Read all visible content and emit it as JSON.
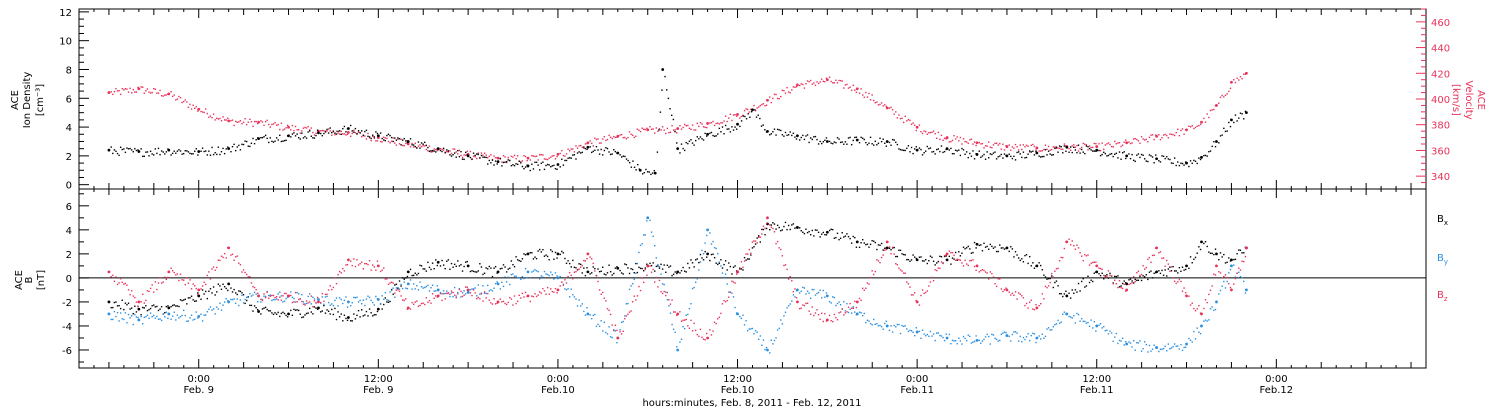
{
  "figure": {
    "xlabel": "hours:minutes, Feb.  8, 2011 - Feb. 12, 2011",
    "x_range_hours": [
      -8,
      82
    ],
    "x_ticks": [
      {
        "hour": 0,
        "time": "0:00",
        "date": "Feb. 9"
      },
      {
        "hour": 12,
        "time": "12:00",
        "date": "Feb. 9"
      },
      {
        "hour": 24,
        "time": "0:00",
        "date": "Feb.10"
      },
      {
        "hour": 36,
        "time": "12:00",
        "date": "Feb.10"
      },
      {
        "hour": 48,
        "time": "0:00",
        "date": "Feb.11"
      },
      {
        "hour": 60,
        "time": "12:00",
        "date": "Feb.11"
      },
      {
        "hour": 72,
        "time": "0:00",
        "date": "Feb.12"
      }
    ]
  },
  "chart_data": [
    {
      "type": "scatter",
      "panel": "top",
      "ylabel_left": [
        "ACE",
        "Ion Density",
        "[cm⁻³]"
      ],
      "ylabel_right": [
        "ACE",
        "Velocity",
        "[km/s]"
      ],
      "ylim_left": [
        -0.3,
        12.2
      ],
      "yticks_left": [
        0,
        2,
        4,
        6,
        8,
        10,
        12
      ],
      "ylim_right": [
        330,
        470
      ],
      "yticks_right": [
        340,
        360,
        380,
        400,
        420,
        440,
        460
      ],
      "grid": false,
      "series": [
        {
          "name": "density",
          "color": "#000000",
          "axis": "left",
          "x": [
            -6,
            -4,
            -2,
            0,
            2,
            4,
            6,
            8,
            10,
            12,
            14,
            16,
            18,
            20,
            22,
            24,
            26,
            28,
            29.5,
            30.5,
            31,
            32,
            34,
            36,
            37,
            38,
            40,
            42,
            44,
            46,
            48,
            50,
            52,
            54,
            56,
            58,
            60,
            62,
            64,
            66,
            67,
            68,
            69,
            70
          ],
          "y": [
            2.4,
            2.3,
            2.4,
            2.3,
            2.5,
            3.2,
            3.4,
            3.6,
            3.9,
            3.4,
            3.0,
            2.5,
            2.0,
            1.6,
            1.3,
            1.4,
            2.6,
            2.2,
            1.0,
            0.8,
            8.0,
            2.5,
            3.5,
            4.2,
            5.2,
            3.7,
            3.4,
            3.0,
            3.1,
            3.0,
            2.4,
            2.5,
            2.1,
            2.0,
            2.2,
            2.6,
            2.4,
            2.0,
            1.8,
            1.5,
            1.9,
            3.0,
            4.5,
            5.0
          ]
        },
        {
          "name": "velocity",
          "color": "#e8325a",
          "axis": "right",
          "x": [
            -6,
            -4,
            -2,
            0,
            2,
            4,
            6,
            8,
            10,
            12,
            14,
            16,
            18,
            20,
            22,
            24,
            26,
            28,
            30,
            32,
            34,
            36,
            38,
            40,
            42,
            44,
            46,
            48,
            50,
            52,
            54,
            56,
            58,
            60,
            62,
            64,
            66,
            67,
            68,
            69,
            70
          ],
          "y": [
            405,
            408,
            404,
            392,
            383,
            382,
            378,
            375,
            374,
            370,
            365,
            361,
            357,
            354,
            354,
            357,
            366,
            371,
            376,
            377,
            381,
            388,
            399,
            411,
            415,
            408,
            393,
            378,
            370,
            366,
            363,
            362,
            363,
            363,
            366,
            371,
            376,
            382,
            395,
            413,
            420
          ]
        }
      ]
    },
    {
      "type": "scatter",
      "panel": "bottom",
      "ylabel_left": [
        "ACE",
        "B",
        "[nT]"
      ],
      "ylim": [
        -7.5,
        7.4
      ],
      "yticks": [
        -6,
        -4,
        -2,
        0,
        2,
        4,
        6
      ],
      "zero_line": true,
      "legend_position": "right",
      "legend": [
        {
          "label": "B",
          "sub": "x",
          "color": "#000000"
        },
        {
          "label": "B",
          "sub": "y",
          "color": "#2a8fe0"
        },
        {
          "label": "B",
          "sub": "z",
          "color": "#e8325a"
        }
      ],
      "series": [
        {
          "name": "Bx",
          "color": "#000000",
          "x": [
            -6,
            -4,
            -2,
            0,
            2,
            4,
            6,
            8,
            10,
            12,
            14,
            16,
            18,
            20,
            22,
            24,
            26,
            28,
            30,
            32,
            34,
            36,
            38,
            40,
            42,
            44,
            46,
            48,
            50,
            52,
            54,
            56,
            58,
            60,
            62,
            64,
            66,
            67,
            68,
            69,
            70
          ],
          "y": [
            -2.0,
            -2.6,
            -2.5,
            -1.5,
            -0.5,
            -2.8,
            -3.0,
            -2.5,
            -3.3,
            -2.6,
            0.5,
            1.3,
            1.0,
            0.5,
            2.0,
            2.0,
            0.5,
            0.8,
            1.0,
            0.5,
            2.0,
            0.5,
            4.5,
            4.2,
            3.8,
            3.0,
            2.5,
            1.5,
            1.5,
            2.8,
            2.5,
            1.0,
            -1.5,
            0.5,
            -0.5,
            0.5,
            1.0,
            3.0,
            2.0,
            1.5,
            2.5
          ]
        },
        {
          "name": "By",
          "color": "#2a8fe0",
          "x": [
            -6,
            -4,
            -2,
            0,
            2,
            4,
            6,
            8,
            10,
            12,
            14,
            16,
            18,
            20,
            22,
            24,
            26,
            28,
            30,
            32,
            34,
            36,
            38,
            40,
            42,
            44,
            46,
            48,
            50,
            52,
            54,
            56,
            58,
            60,
            62,
            64,
            66,
            67,
            68,
            69,
            70
          ],
          "y": [
            -3.0,
            -3.5,
            -3.0,
            -3.2,
            -2.0,
            -1.5,
            -1.5,
            -1.8,
            -2.0,
            -1.8,
            -0.5,
            -1.0,
            -1.2,
            -0.5,
            0.5,
            0.0,
            -3.0,
            -5.0,
            5.0,
            -6.0,
            4.0,
            -3.0,
            -6.0,
            -1.0,
            -1.5,
            -3.0,
            -4.0,
            -4.5,
            -5.0,
            -5.2,
            -4.8,
            -5.0,
            -3.0,
            -4.0,
            -5.5,
            -5.8,
            -5.5,
            -4.0,
            -2.0,
            1.0,
            -1.0
          ]
        },
        {
          "name": "Bz",
          "color": "#e8325a",
          "x": [
            -6,
            -4,
            -2,
            0,
            2,
            4,
            6,
            8,
            10,
            12,
            14,
            16,
            18,
            20,
            22,
            24,
            26,
            28,
            30,
            32,
            34,
            36,
            38,
            40,
            42,
            44,
            46,
            48,
            50,
            52,
            54,
            56,
            58,
            60,
            62,
            64,
            66,
            67,
            68,
            69,
            70
          ],
          "y": [
            0.5,
            -2.0,
            0.5,
            -1.0,
            2.5,
            -1.5,
            -1.5,
            -2.0,
            1.5,
            1.0,
            -2.5,
            -1.5,
            -1.0,
            -2.0,
            -1.5,
            -1.0,
            2.0,
            -5.0,
            1.0,
            -3.0,
            -5.0,
            0.5,
            5.0,
            -2.0,
            -3.5,
            -2.0,
            3.0,
            -2.0,
            2.0,
            1.0,
            -1.0,
            -2.5,
            3.0,
            1.0,
            -1.0,
            2.5,
            -1.5,
            -3.0,
            1.0,
            -1.0,
            2.5
          ]
        }
      ]
    }
  ]
}
